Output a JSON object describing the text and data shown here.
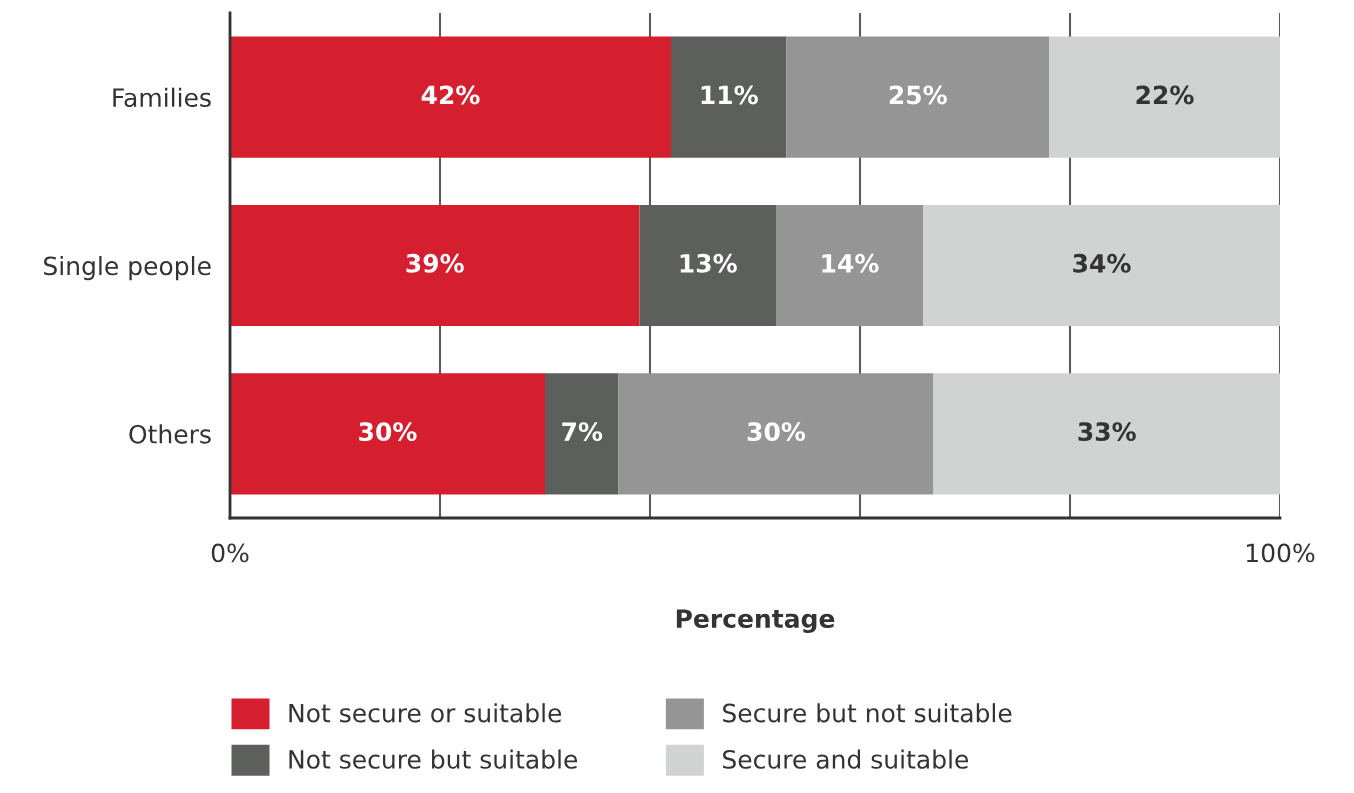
{
  "chart_data": {
    "type": "bar",
    "orientation": "horizontal",
    "stacked": true,
    "categories": [
      "Families",
      "Single people",
      "Others"
    ],
    "series": [
      {
        "name": "Not secure or suitable",
        "color": "#d51f2e",
        "values": [
          42,
          39,
          30
        ],
        "value_labels": [
          "42%",
          "39%",
          "30%"
        ]
      },
      {
        "name": "Not secure but suitable",
        "color": "#5d5f5c",
        "values": [
          11,
          13,
          7
        ],
        "value_labels": [
          "11%",
          "13%",
          "7%"
        ]
      },
      {
        "name": "Secure but not suitable",
        "color": "#949594",
        "values": [
          25,
          14,
          30
        ],
        "value_labels": [
          "25%",
          "14%",
          "30%"
        ]
      },
      {
        "name": "Secure and suitable",
        "color": "#d1d3d2",
        "values": [
          22,
          34,
          33
        ],
        "value_labels": [
          "22%",
          "34%",
          "33%"
        ]
      }
    ],
    "xlabel": "Percentage",
    "xlim": [
      0,
      100
    ],
    "xticks": [
      {
        "value": 0,
        "label": "0%"
      },
      {
        "value": 20,
        "label": null
      },
      {
        "value": 40,
        "label": null
      },
      {
        "value": 60,
        "label": null
      },
      {
        "value": 80,
        "label": null
      },
      {
        "value": 100,
        "label": "100%"
      }
    ],
    "grid": "x",
    "legend": "bottom"
  }
}
